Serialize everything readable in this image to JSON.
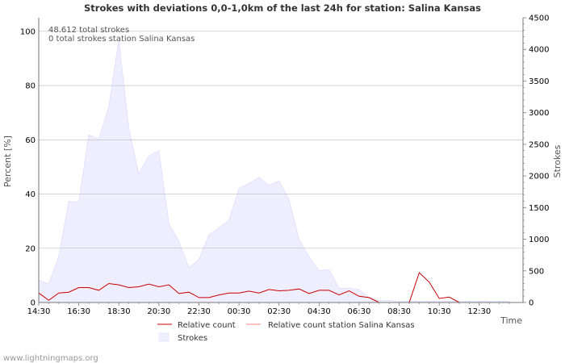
{
  "chart_data": {
    "type": "line",
    "title": "Strokes with deviations 0,0-1,0km of the last 24h for station: Salina  Kansas",
    "xlabel": "Time",
    "ylabel_left": "Percent   [%]",
    "ylabel_right": "Strokes",
    "ylim_left": [
      0,
      105
    ],
    "ylim_right": [
      0,
      4500
    ],
    "yticks_left": [
      0,
      20,
      40,
      60,
      80,
      100
    ],
    "yticks_right": [
      0,
      500,
      1000,
      1500,
      2000,
      2500,
      3000,
      3500,
      4000,
      4500
    ],
    "xticks": [
      "14:30",
      "16:30",
      "18:30",
      "20:30",
      "22:30",
      "00:30",
      "02:30",
      "04:30",
      "06:30",
      "08:30",
      "10:30",
      "12:30"
    ],
    "annotations": [
      "48.612 total strokes",
      "0 total strokes station Salina  Kansas"
    ],
    "grid": true,
    "colors": {
      "relative": "#cc0000",
      "relative_station": "#ff8080",
      "strokes_fill": "#eeeeff",
      "strokes_stroke": "#ddddff",
      "grid": "#bbbbbb",
      "axis": "#777777"
    },
    "series": [
      {
        "name": "Strokes",
        "axis": "right",
        "style": "area",
        "x": [
          0,
          0.5,
          1,
          1.5,
          2,
          2.5,
          3,
          3.5,
          4,
          4.5,
          5,
          5.5,
          6,
          6.5,
          7,
          7.5,
          8,
          8.5,
          9,
          9.5,
          10,
          10.5,
          11,
          11.5,
          12,
          12.5,
          13,
          13.5,
          14,
          14.5,
          15,
          15.5,
          16,
          16.5,
          17,
          17.5,
          18,
          18.5,
          19,
          19.5,
          20,
          20.5,
          21,
          21.5,
          22,
          22.5,
          23,
          23.5
        ],
        "values": [
          350,
          290,
          730,
          1600,
          1590,
          2650,
          2580,
          3100,
          4150,
          2750,
          2030,
          2320,
          2400,
          1250,
          960,
          550,
          680,
          1070,
          1180,
          1300,
          1800,
          1880,
          1980,
          1850,
          1920,
          1620,
          1000,
          720,
          500,
          520,
          220,
          230,
          200,
          80,
          30,
          30,
          20,
          20,
          20,
          20,
          20,
          20,
          20,
          20,
          20,
          20,
          20,
          20
        ]
      },
      {
        "name": "Relative count",
        "axis": "left",
        "style": "line",
        "x": [
          0,
          0.5,
          1,
          1.5,
          2,
          2.5,
          3,
          3.5,
          4,
          4.5,
          5,
          5.5,
          6,
          6.5,
          7,
          7.5,
          8,
          8.5,
          9,
          9.5,
          10,
          10.5,
          11,
          11.5,
          12,
          12.5,
          13,
          13.5,
          14,
          14.5,
          15,
          15.5,
          16,
          16.5,
          17,
          17.5,
          18,
          18.5,
          19,
          19.5,
          20,
          20.5,
          21,
          21.5,
          22,
          22.5,
          23,
          23.5
        ],
        "values": [
          3.5,
          0.8,
          3.5,
          3.8,
          5.5,
          5.5,
          4.5,
          7.0,
          6.5,
          5.5,
          5.8,
          6.8,
          5.8,
          6.5,
          3.3,
          3.8,
          1.8,
          1.8,
          2.8,
          3.5,
          3.5,
          4.2,
          3.5,
          4.8,
          4.3,
          4.5,
          5.0,
          3.3,
          4.5,
          4.5,
          2.8,
          4.3,
          2.3,
          1.8,
          0.0,
          0.0,
          0.0,
          0.0,
          11.0,
          7.5,
          1.5,
          2.0,
          0.0,
          0.0,
          0.0,
          0.0,
          0.0,
          0.0
        ]
      },
      {
        "name": "Relative count station Salina  Kansas",
        "axis": "left",
        "style": "line",
        "x": [],
        "values": []
      }
    ]
  },
  "legend": {
    "relative": "Relative count",
    "relative_station": "Relative count station Salina  Kansas",
    "strokes": "Strokes"
  },
  "footer": "www.lightningmaps.org"
}
